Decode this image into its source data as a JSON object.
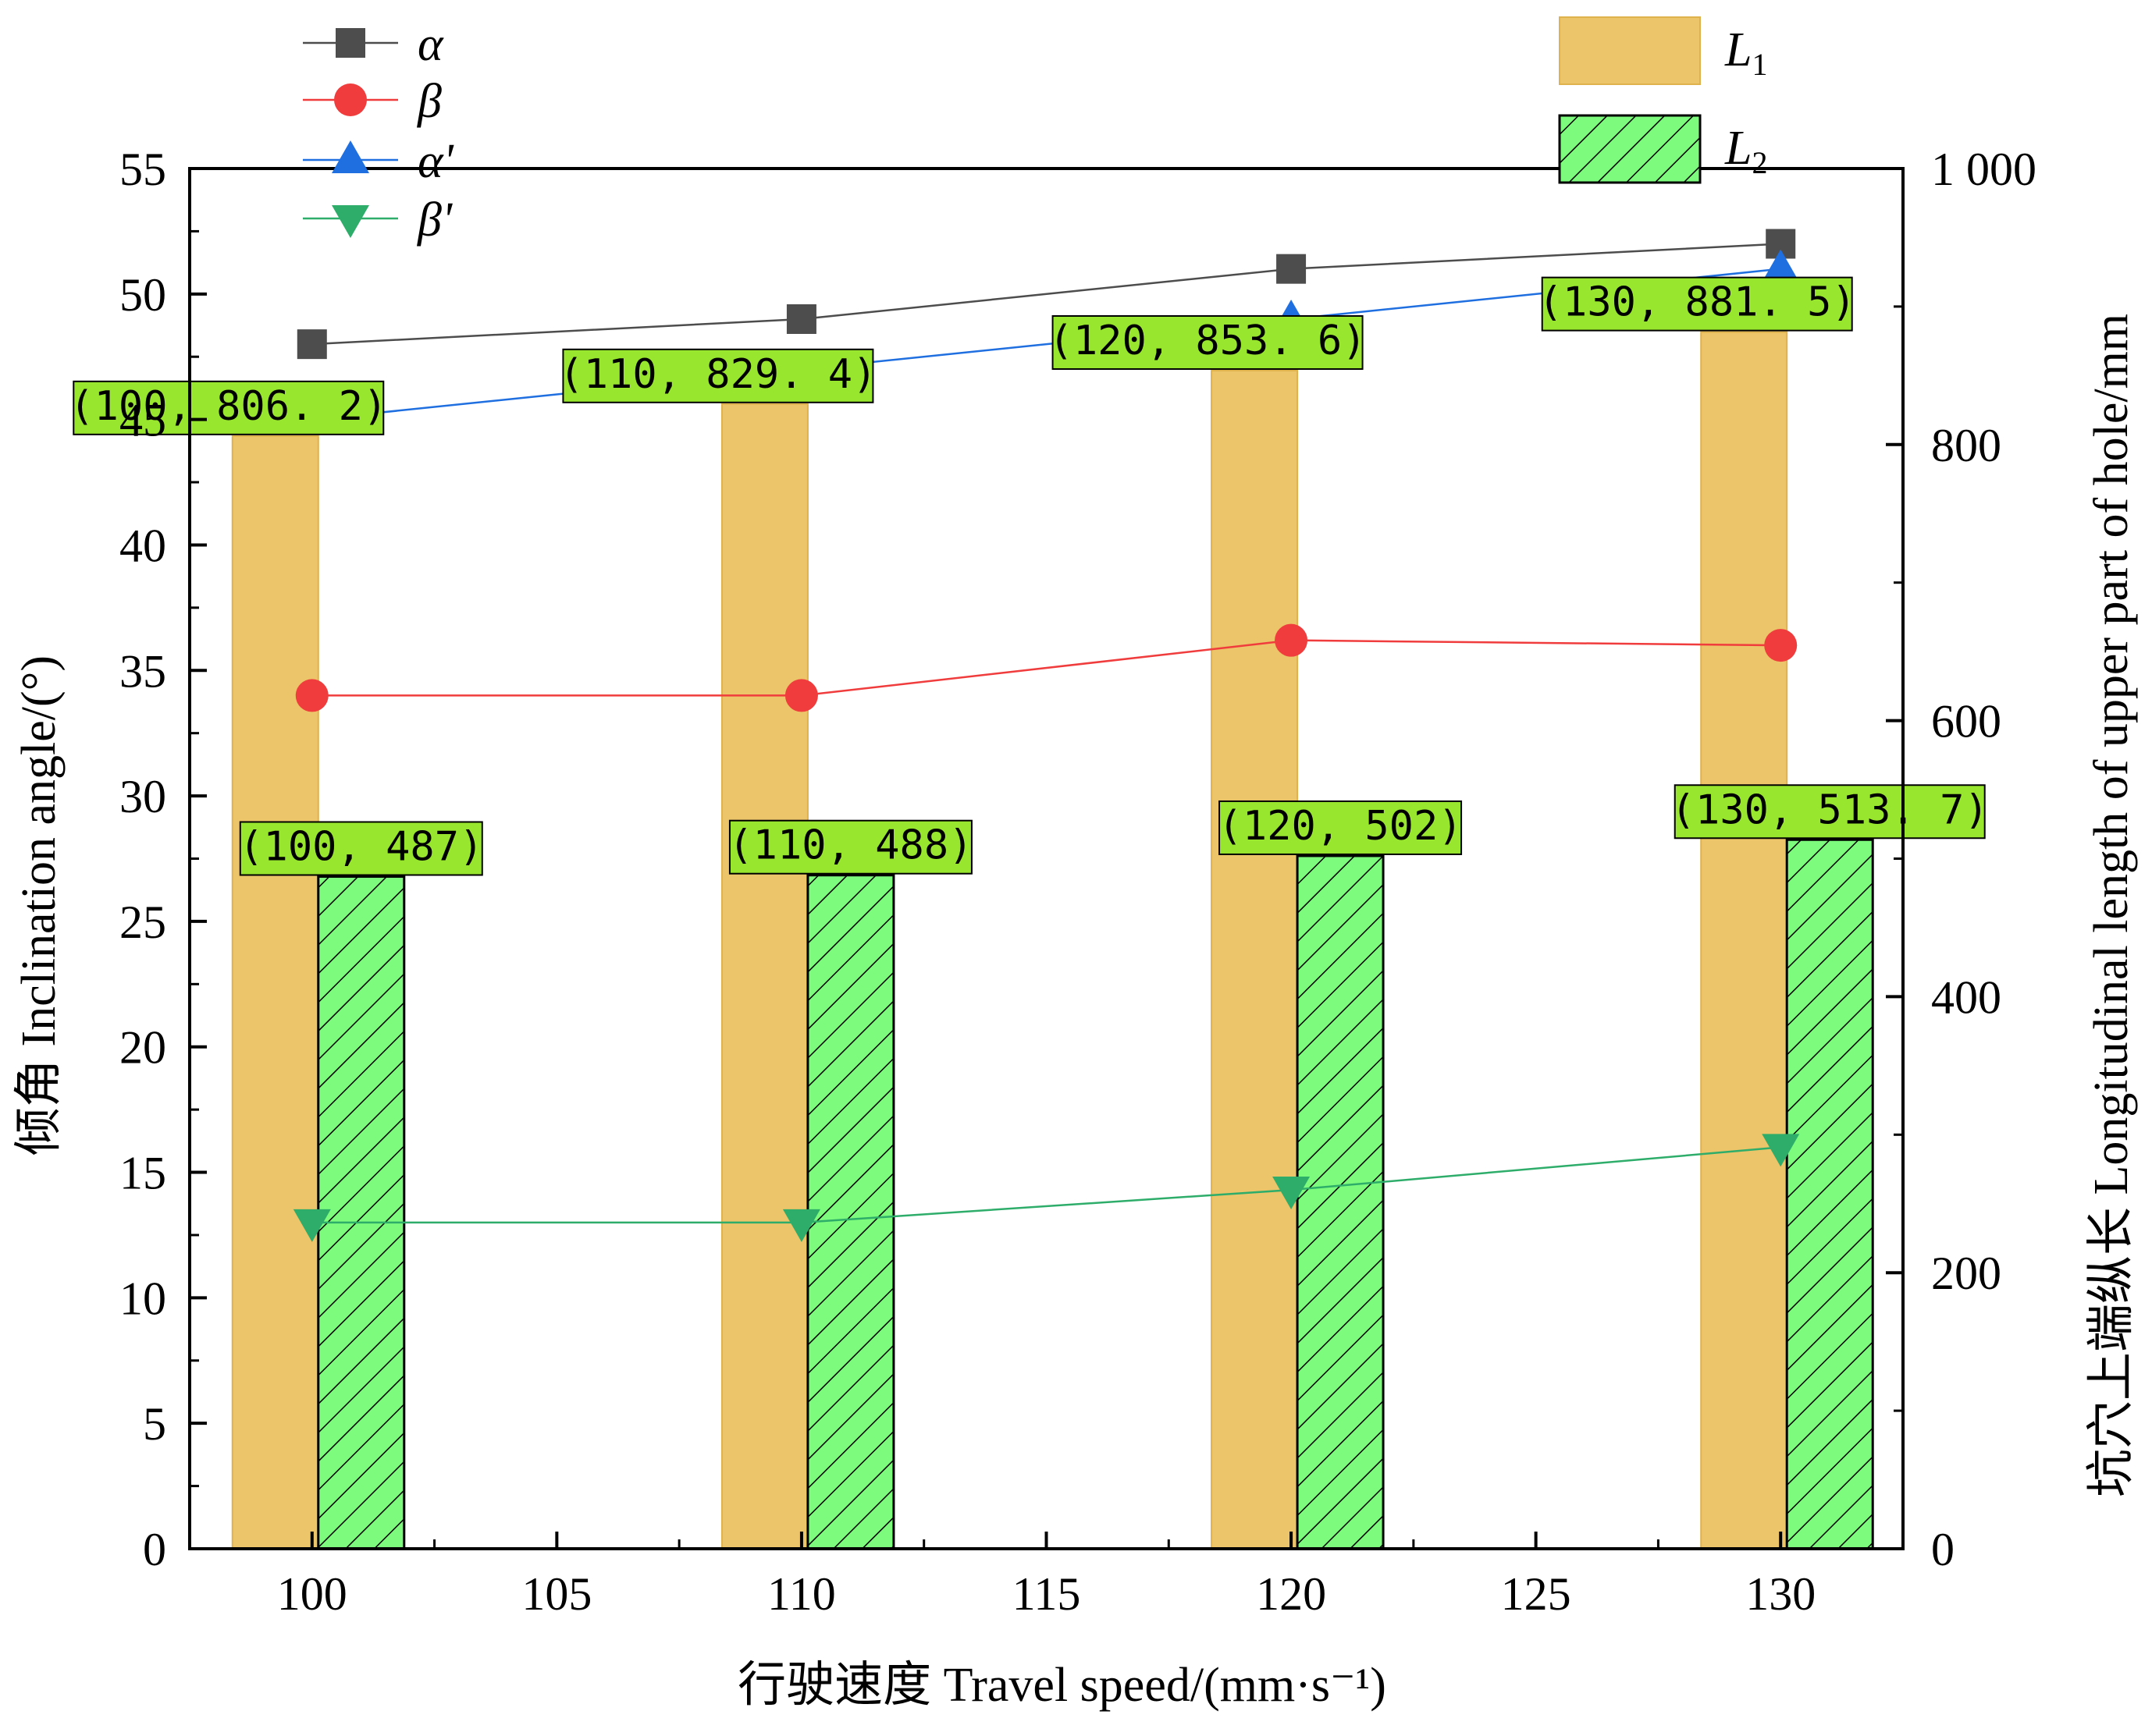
{
  "chart_data": {
    "type": "bar",
    "x_axis": {
      "label": "行驶速度  Travel speed/(mm·s⁻¹)",
      "range": [
        97.5,
        132.5
      ],
      "ticks": [
        100,
        105,
        110,
        115,
        120,
        125,
        130
      ]
    },
    "y_axis_left": {
      "label": "倾角  Inclination angle/(°)",
      "range": [
        0,
        55
      ],
      "ticks": [
        0,
        5,
        10,
        15,
        20,
        25,
        30,
        35,
        40,
        45,
        50,
        55
      ]
    },
    "y_axis_right": {
      "label": "坑穴上端纵长  Longitudinal length of upper part of hole/mm",
      "range": [
        0,
        1000
      ],
      "ticks": [
        0,
        200,
        400,
        600,
        800,
        1000
      ],
      "tick_labels": [
        "0",
        "200",
        "400",
        "600",
        "800",
        "1 000"
      ]
    },
    "bar_series": [
      {
        "name": "L1",
        "axis": "right",
        "color": "#ECC469",
        "pattern": "solid",
        "x": [
          100,
          110,
          120,
          130
        ],
        "values": [
          806.2,
          829.4,
          853.6,
          881.5
        ],
        "labels": [
          "(100, 806. 2)",
          "(110, 829. 4)",
          "(120, 853. 6)",
          "(130, 881. 5)"
        ]
      },
      {
        "name": "L2",
        "axis": "right",
        "color": "#7CFB7C",
        "pattern": "hatch",
        "x": [
          100,
          110,
          120,
          130
        ],
        "values": [
          487,
          488,
          502,
          513.7
        ],
        "labels": [
          "(100, 487)",
          "(110, 488)",
          "(120, 502)",
          "(130, 513. 7)"
        ]
      }
    ],
    "line_series": [
      {
        "name": "α",
        "marker": "square",
        "color": "#4D4D4D",
        "x": [
          100,
          110,
          120,
          130
        ],
        "values": [
          48,
          49,
          51,
          52
        ]
      },
      {
        "name": "β",
        "marker": "circle",
        "color": "#F03C3C",
        "x": [
          100,
          110,
          120,
          130
        ],
        "values": [
          34,
          34,
          36.2,
          36
        ]
      },
      {
        "name": "α'",
        "marker": "triangle-up",
        "color": "#1F6FE0",
        "x": [
          100,
          110,
          120,
          130
        ],
        "values": [
          45,
          47,
          49,
          51
        ]
      },
      {
        "name": "β'",
        "marker": "triangle-down",
        "color": "#2EAD6A",
        "x": [
          100,
          110,
          120,
          130
        ],
        "values": [
          13,
          13,
          14.3,
          16
        ]
      }
    ],
    "legend": {
      "lines_position": "top-left",
      "bars_position": "top-right",
      "bar_labels": {
        "L1": {
          "main": "L",
          "sub": "1"
        },
        "L2": {
          "main": "L",
          "sub": "2"
        }
      }
    },
    "label_box_color": "#99E62E",
    "grid": false
  }
}
